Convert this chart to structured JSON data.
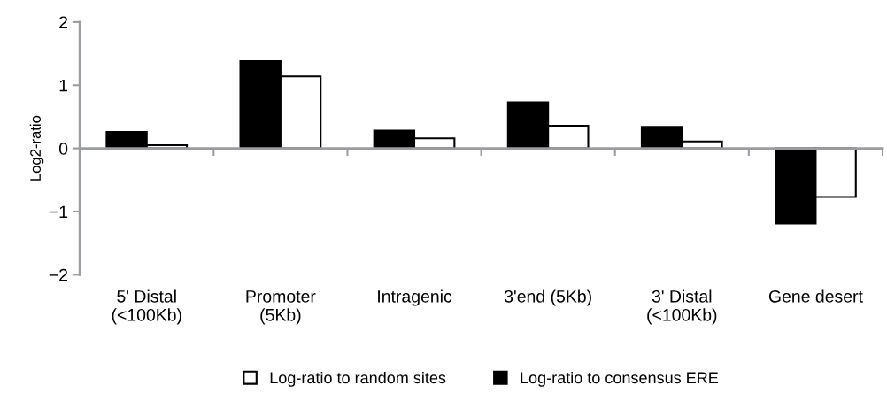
{
  "chart_data": {
    "type": "bar",
    "ylabel": "Log2-ratio",
    "categories": [
      "5' Distal\n(<100Kb)",
      "Promoter\n(5Kb)",
      "Intragenic",
      "3'end (5Kb)",
      "3' Distal\n(<100Kb)",
      "Gene desert"
    ],
    "series": [
      {
        "name": "Log-ratio to consensus ERE",
        "color": "#000000",
        "values": [
          0.26,
          1.38,
          0.28,
          0.73,
          0.34,
          -1.19
        ]
      },
      {
        "name": "Log-ratio to random sites",
        "color": "#ffffff",
        "values": [
          0.05,
          1.14,
          0.16,
          0.36,
          0.11,
          -0.77
        ]
      }
    ],
    "ylim": [
      -2,
      2
    ],
    "yticks": [
      -2,
      -1,
      0,
      1,
      2
    ],
    "legend": "bottom"
  }
}
